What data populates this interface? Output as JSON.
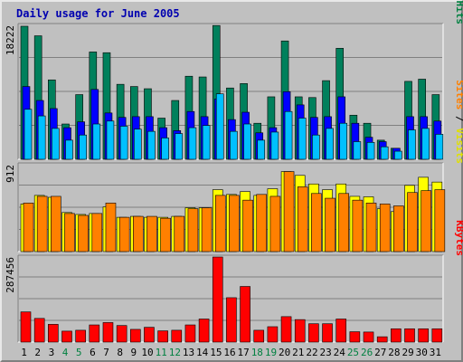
{
  "chart_data": {
    "type": "bar",
    "title": "Daily usage for June 2005",
    "categories": [
      "1",
      "2",
      "3",
      "4",
      "5",
      "6",
      "7",
      "8",
      "9",
      "10",
      "11",
      "12",
      "13",
      "14",
      "15",
      "16",
      "17",
      "18",
      "19",
      "20",
      "21",
      "22",
      "23",
      "24",
      "25",
      "26",
      "27",
      "28",
      "29",
      "30",
      "31"
    ],
    "weekend_days": [
      "4",
      "5",
      "11",
      "12",
      "18",
      "19",
      "25",
      "26"
    ],
    "panels": [
      {
        "max_label": "18222",
        "ymax": 18222,
        "legend": [
          {
            "text": "Pages",
            "color": "#0080c0"
          },
          {
            "text": " / ",
            "color": "#000000"
          },
          {
            "text": "Files",
            "color": "#0000ff"
          },
          {
            "text": " / ",
            "color": "#000000"
          },
          {
            "text": "Hits",
            "color": "#008040"
          }
        ],
        "series": [
          {
            "name": "Hits",
            "color": "#00805c",
            "values": [
              18100,
              16800,
              10800,
              4800,
              8800,
              14600,
              14500,
              10200,
              9900,
              9600,
              5600,
              8000,
              11300,
              11200,
              18200,
              9700,
              10300,
              4900,
              8500,
              16100,
              8500,
              8400,
              10700,
              15100,
              6000,
              4900,
              2600,
              1500,
              10600,
              10900,
              8800
            ]
          },
          {
            "name": "Files",
            "color": "#0000ff",
            "values": [
              9900,
              8000,
              6900,
              4300,
              5100,
              9500,
              6300,
              5700,
              5800,
              5800,
              4300,
              3900,
              6500,
              5800,
              8200,
              5400,
              6400,
              3600,
              4300,
              9200,
              7400,
              5700,
              5800,
              8500,
              4900,
              3000,
              2400,
              1500,
              5800,
              5800,
              5200
            ]
          },
          {
            "name": "Pages",
            "color": "#00c0ff",
            "values": [
              6800,
              5900,
              4200,
              2600,
              3300,
              4800,
              5200,
              4500,
              4100,
              3800,
              2900,
              3500,
              4300,
              4600,
              8900,
              3800,
              4800,
              2600,
              3700,
              6500,
              5600,
              3300,
              4200,
              4900,
              2400,
              2300,
              1700,
              1100,
              4000,
              4200,
              3400
            ]
          }
        ]
      },
      {
        "max_label": "912",
        "ymax": 912,
        "legend": [
          {
            "text": "Sites",
            "color": "#ff8000"
          },
          {
            "text": " / ",
            "color": "#000000"
          },
          {
            "text": "Visits",
            "color": "#e0e000"
          }
        ],
        "series": [
          {
            "name": "Visits",
            "color": "#ffff00",
            "values": [
              500,
              590,
              570,
              410,
              390,
              400,
              470,
              360,
              370,
              360,
              360,
              370,
              460,
              460,
              650,
              600,
              630,
              590,
              660,
              840,
              800,
              710,
              650,
              710,
              580,
              575,
              450,
              420,
              695,
              780,
              730
            ]
          },
          {
            "name": "Sites",
            "color": "#ff8000",
            "values": [
              510,
              580,
              580,
              400,
              380,
              400,
              510,
              360,
              370,
              370,
              350,
              370,
              450,
              460,
              590,
              590,
              540,
              600,
              580,
              840,
              680,
              610,
              560,
              610,
              540,
              510,
              500,
              480,
              620,
              640,
              650
            ]
          }
        ]
      },
      {
        "max_label": "287456",
        "ymax": 287456,
        "legend": [
          {
            "text": "KBytes",
            "color": "#ff0000"
          }
        ],
        "series": [
          {
            "name": "KBytes",
            "color": "#ff0000",
            "values": [
              102000,
              80000,
              60000,
              37000,
              40000,
              58000,
              66000,
              56000,
              43000,
              50000,
              38000,
              40000,
              58000,
              78000,
              287456,
              150000,
              188000,
              40000,
              52000,
              86000,
              76000,
              62000,
              62000,
              78000,
              35000,
              34000,
              18000,
              45000,
              45000,
              45000,
              45000
            ]
          }
        ]
      }
    ]
  }
}
